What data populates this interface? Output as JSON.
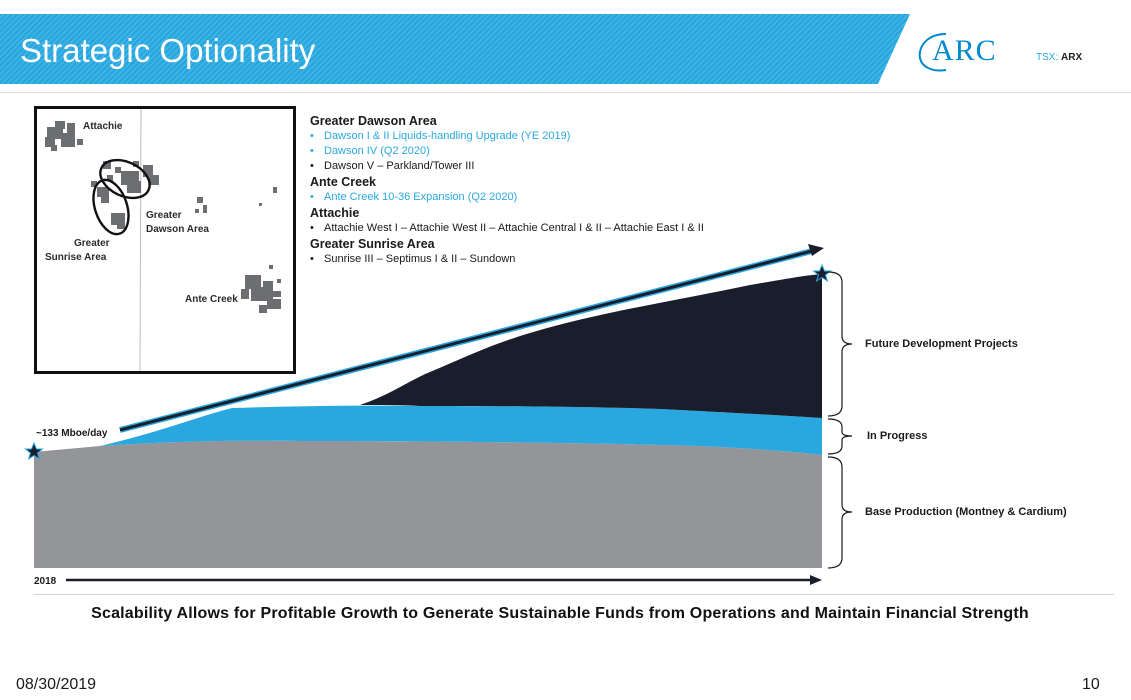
{
  "header": {
    "title": "Strategic Optionality",
    "band_color": "#29a8e0",
    "logo_text": "ARC",
    "ticker_prefix": "TSX:",
    "ticker_symbol": "ARX"
  },
  "map": {
    "labels": {
      "attachie": "Attachie",
      "greater_dawson_line1": "Greater",
      "greater_dawson_line2": "Dawson Area",
      "greater_sunrise_line1": "Greater",
      "greater_sunrise_line2": "Sunrise Area",
      "ante_creek": "Ante Creek"
    }
  },
  "projects": [
    {
      "area": "Greater Dawson Area",
      "items": [
        {
          "text": "Dawson I & II Liquids-handling Upgrade (YE 2019)",
          "highlight": true
        },
        {
          "text": "Dawson IV (Q2 2020)",
          "highlight": true
        },
        {
          "text": "Dawson V – Parkland/Tower III",
          "highlight": false
        }
      ]
    },
    {
      "area": "Ante Creek",
      "items": [
        {
          "text": "Ante Creek 10-36 Expansion (Q2 2020)",
          "highlight": true
        }
      ]
    },
    {
      "area": "Attachie",
      "items": [
        {
          "text": "Attachie West I – Attachie West II – Attachie Central I & II – Attachie East I & II",
          "highlight": false
        }
      ]
    },
    {
      "area": "Greater Sunrise Area",
      "items": [
        {
          "text": "Sunrise III – Septimus I & II – Sundown",
          "highlight": false
        }
      ]
    }
  ],
  "chart": {
    "start_label": "~133 Mboe/day",
    "start_year": "2018",
    "colors": {
      "base": "#939598",
      "in_progress": "#29a8e0",
      "future": "#1a1d2b",
      "arrow": "#1a1d2b"
    },
    "layers": [
      {
        "key": "future",
        "label": "Future Development Projects"
      },
      {
        "key": "in_progress",
        "label": "In Progress"
      },
      {
        "key": "base",
        "label": "Base Production (Montney & Cardium)"
      }
    ]
  },
  "footer": {
    "tagline": "Scalability Allows for Profitable Growth to Generate Sustainable Funds from Operations and Maintain Financial Strength",
    "date": "08/30/2019",
    "page_number": "10"
  }
}
